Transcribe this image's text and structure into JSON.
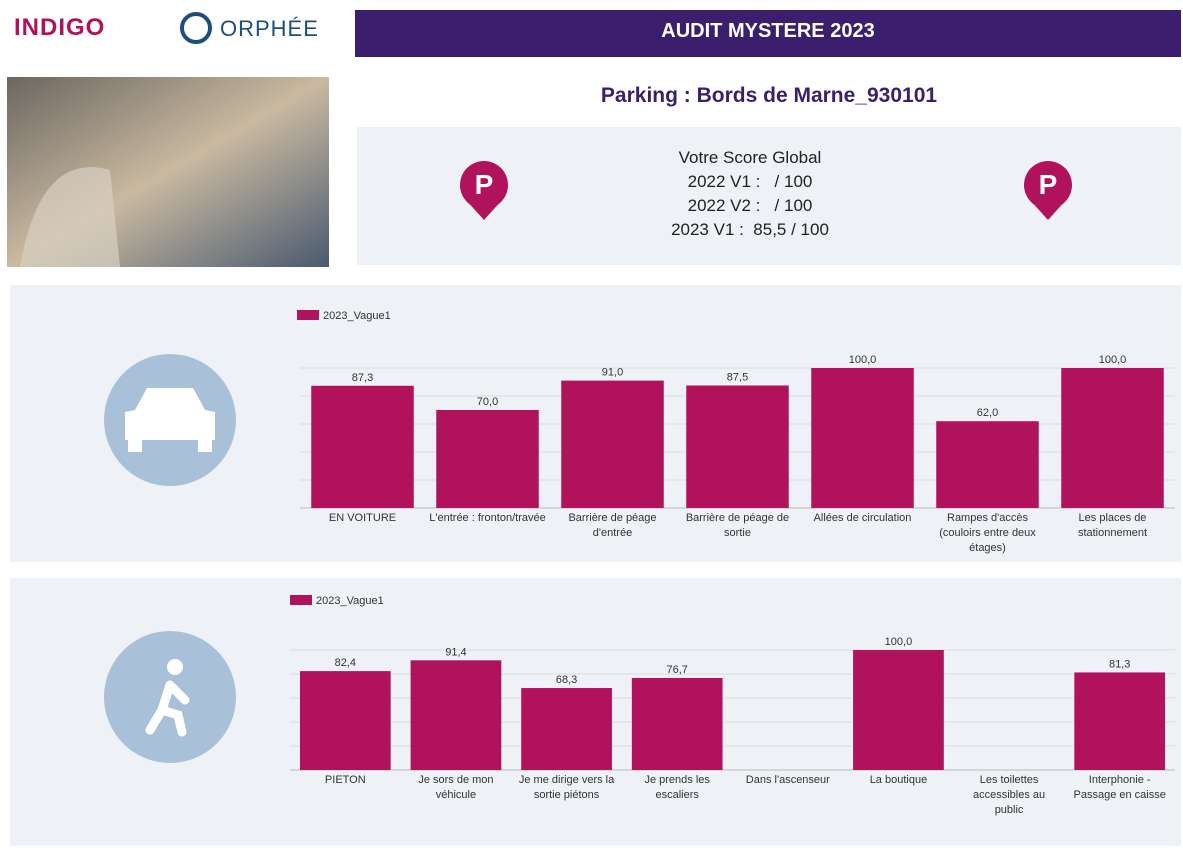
{
  "header": {
    "logo_left": "INDIGO",
    "logo_right": "ORPHÉE",
    "title": "AUDIT MYSTERE 2023",
    "parking": "Parking : Bords de Marne_930101",
    "scores": [
      "Votre Score Global",
      "2022 V1 :   / 100",
      "2022 V2 :   / 100",
      "2023 V1 :  85,5 / 100"
    ]
  },
  "chart_data": [
    {
      "type": "bar",
      "categories": [
        "EN VOITURE",
        "L'entrée : fronton/travée",
        "Barrière de péage d'entrée",
        "Barrière de péage de sortie",
        "Allées de circulation",
        "Rampes d'accès (couloirs entre deux étages)",
        "Les places de stationnement"
      ],
      "series": [
        {
          "name": "2023_Vague1",
          "color": "#b0125b",
          "values": [
            87.3,
            70,
            91,
            87.5,
            100,
            62,
            100
          ],
          "value_labels": [
            "87,3",
            "70,0",
            "91,0",
            "87,5",
            "100,0",
            "62,0",
            "100,0"
          ]
        }
      ],
      "ylim": [
        0,
        100
      ],
      "yticks": [
        0,
        20,
        40,
        60,
        80,
        100
      ],
      "grid": true
    },
    {
      "type": "bar",
      "categories": [
        "PIETON",
        "Je sors de mon véhicule",
        "Je me dirige vers la sortie piétons",
        "Je prends les escaliers",
        "Dans l'ascenseur",
        "La boutique",
        "Les toilettes accessibles au public",
        "Interphonie - Passage en caisse"
      ],
      "series": [
        {
          "name": "2023_Vague1",
          "color": "#b0125b",
          "values": [
            82.4,
            91.4,
            68.3,
            76.7,
            null,
            100,
            null,
            81.3
          ],
          "value_labels": [
            "82,4",
            "91,4",
            "68,3",
            "76,7",
            null,
            "100,0",
            null,
            "81,3"
          ]
        }
      ],
      "ylim": [
        0,
        100
      ],
      "yticks": [
        0,
        20,
        40,
        60,
        80,
        100
      ],
      "grid": true
    }
  ]
}
